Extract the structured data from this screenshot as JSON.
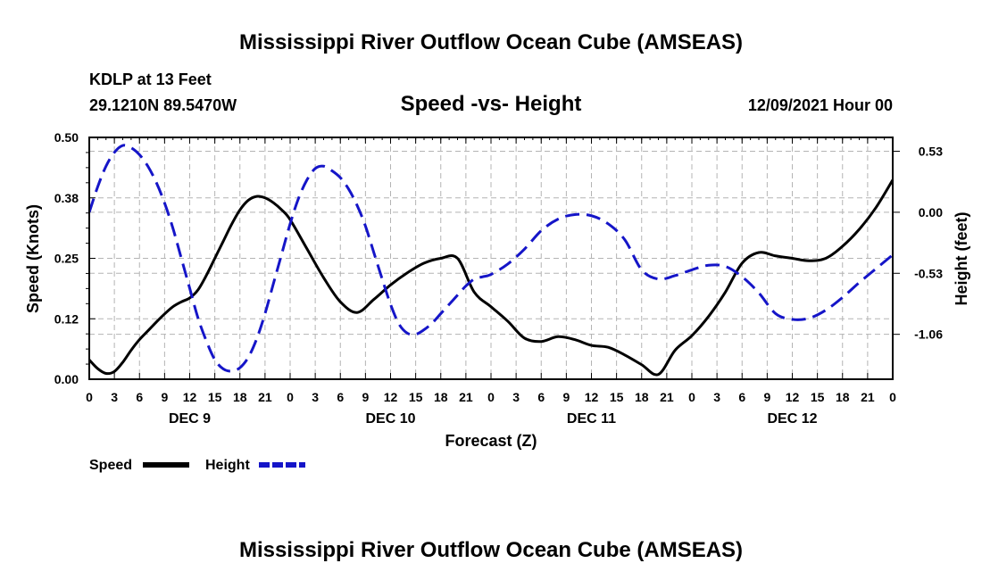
{
  "header": {
    "title": "Mississippi River Outflow Ocean Cube (AMSEAS)",
    "station": "KDLP at 13 Feet",
    "location": "29.1210N  89.5470W",
    "subtitle": "Speed -vs- Height",
    "datetime": "12/09/2021 Hour 00",
    "footer_title": "Mississippi River Outflow Ocean Cube (AMSEAS)"
  },
  "colors": {
    "speed": "#000000",
    "height": "#1515c8",
    "grid": "#b4b4b4"
  },
  "chart_data": {
    "type": "line",
    "title": "Speed -vs- Height",
    "xlabel": "Forecast (Z)",
    "ylabel": "Speed (Knots)",
    "y2label": "Height (feet)",
    "x_range": [
      0,
      96
    ],
    "x_ticks": [
      0,
      3,
      6,
      9,
      12,
      15,
      18,
      21,
      24,
      27,
      30,
      33,
      36,
      39,
      42,
      45,
      48,
      51,
      54,
      57,
      60,
      63,
      66,
      69,
      72,
      75,
      78,
      81,
      84,
      87,
      90,
      93,
      96
    ],
    "x_tick_labels": [
      "0",
      "3",
      "6",
      "9",
      "12",
      "15",
      "18",
      "21",
      "0",
      "3",
      "6",
      "9",
      "12",
      "15",
      "18",
      "21",
      "0",
      "3",
      "6",
      "9",
      "12",
      "15",
      "18",
      "21",
      "0",
      "3",
      "6",
      "9",
      "12",
      "15",
      "18",
      "21",
      "0"
    ],
    "day_labels": [
      {
        "at": 12,
        "label": "DEC 9"
      },
      {
        "at": 36,
        "label": "DEC 10"
      },
      {
        "at": 60,
        "label": "DEC 11"
      },
      {
        "at": 84,
        "label": "DEC 12"
      }
    ],
    "ylim": [
      0,
      0.5
    ],
    "y_ticks": [
      0,
      0.125,
      0.25,
      0.375,
      0.5
    ],
    "y_tick_labels": [
      "0.00",
      "0.12",
      "0.25",
      "0.38",
      "0.50"
    ],
    "y2lim": [
      -1.45,
      0.65
    ],
    "y2_ticks": [
      0.53,
      0.0,
      -0.53,
      -1.06
    ],
    "y2_tick_labels": [
      "0.53",
      "0.00",
      "-0.53",
      "-1.06"
    ],
    "legend": [
      {
        "name": "Speed",
        "style": "solid"
      },
      {
        "name": "Height",
        "style": "dashed"
      }
    ],
    "series": [
      {
        "name": "Speed",
        "axis": "left",
        "x": [
          0,
          1,
          2,
          3,
          4,
          5,
          6,
          7,
          8,
          9,
          10,
          11,
          12,
          13,
          14,
          15,
          16,
          17,
          18,
          19,
          20,
          21,
          22,
          23,
          24,
          26,
          28,
          30,
          32,
          34,
          36,
          38,
          40,
          42,
          44,
          46,
          48,
          50,
          52,
          54,
          56,
          58,
          60,
          62,
          64,
          66,
          68,
          70,
          72,
          74,
          76,
          78,
          80,
          82,
          84,
          86,
          88,
          90,
          92,
          94,
          96
        ],
        "values": [
          0.04,
          0.022,
          0.012,
          0.016,
          0.035,
          0.06,
          0.082,
          0.1,
          0.118,
          0.135,
          0.15,
          0.16,
          0.168,
          0.185,
          0.215,
          0.25,
          0.285,
          0.32,
          0.35,
          0.37,
          0.378,
          0.375,
          0.365,
          0.35,
          0.33,
          0.27,
          0.21,
          0.16,
          0.138,
          0.165,
          0.195,
          0.22,
          0.24,
          0.25,
          0.25,
          0.18,
          0.15,
          0.12,
          0.085,
          0.078,
          0.088,
          0.082,
          0.07,
          0.066,
          0.05,
          0.03,
          0.01,
          0.06,
          0.09,
          0.13,
          0.18,
          0.24,
          0.262,
          0.255,
          0.25,
          0.245,
          0.25,
          0.275,
          0.31,
          0.355,
          0.412
        ]
      },
      {
        "name": "Height",
        "axis": "right",
        "x": [
          0,
          1,
          2,
          3,
          4,
          5,
          6,
          7,
          8,
          9,
          10,
          11,
          12,
          13,
          14,
          15,
          16,
          17,
          18,
          19,
          20,
          21,
          22,
          23,
          24,
          25,
          26,
          27,
          28,
          29,
          30,
          31,
          32,
          33,
          34,
          35,
          36,
          37,
          38,
          39,
          40,
          41,
          42,
          43,
          44,
          45,
          46,
          47,
          48,
          50,
          52,
          54,
          56,
          58,
          60,
          62,
          64,
          66,
          68,
          70,
          72,
          74,
          76,
          78,
          80,
          82,
          84,
          86,
          88,
          90,
          92,
          94,
          96
        ],
        "values": [
          0.0,
          0.22,
          0.4,
          0.52,
          0.58,
          0.56,
          0.5,
          0.4,
          0.26,
          0.08,
          -0.14,
          -0.4,
          -0.66,
          -0.92,
          -1.12,
          -1.28,
          -1.36,
          -1.38,
          -1.35,
          -1.26,
          -1.1,
          -0.88,
          -0.62,
          -0.36,
          -0.1,
          0.12,
          0.28,
          0.38,
          0.4,
          0.36,
          0.3,
          0.2,
          0.06,
          -0.12,
          -0.35,
          -0.58,
          -0.8,
          -0.97,
          -1.05,
          -1.06,
          -1.02,
          -0.96,
          -0.88,
          -0.8,
          -0.72,
          -0.64,
          -0.58,
          -0.56,
          -0.54,
          -0.45,
          -0.32,
          -0.16,
          -0.06,
          -0.02,
          -0.03,
          -0.1,
          -0.24,
          -0.5,
          -0.58,
          -0.55,
          -0.5,
          -0.46,
          -0.47,
          -0.56,
          -0.7,
          -0.88,
          -0.93,
          -0.92,
          -0.85,
          -0.74,
          -0.61,
          -0.49,
          -0.37
        ]
      }
    ]
  }
}
